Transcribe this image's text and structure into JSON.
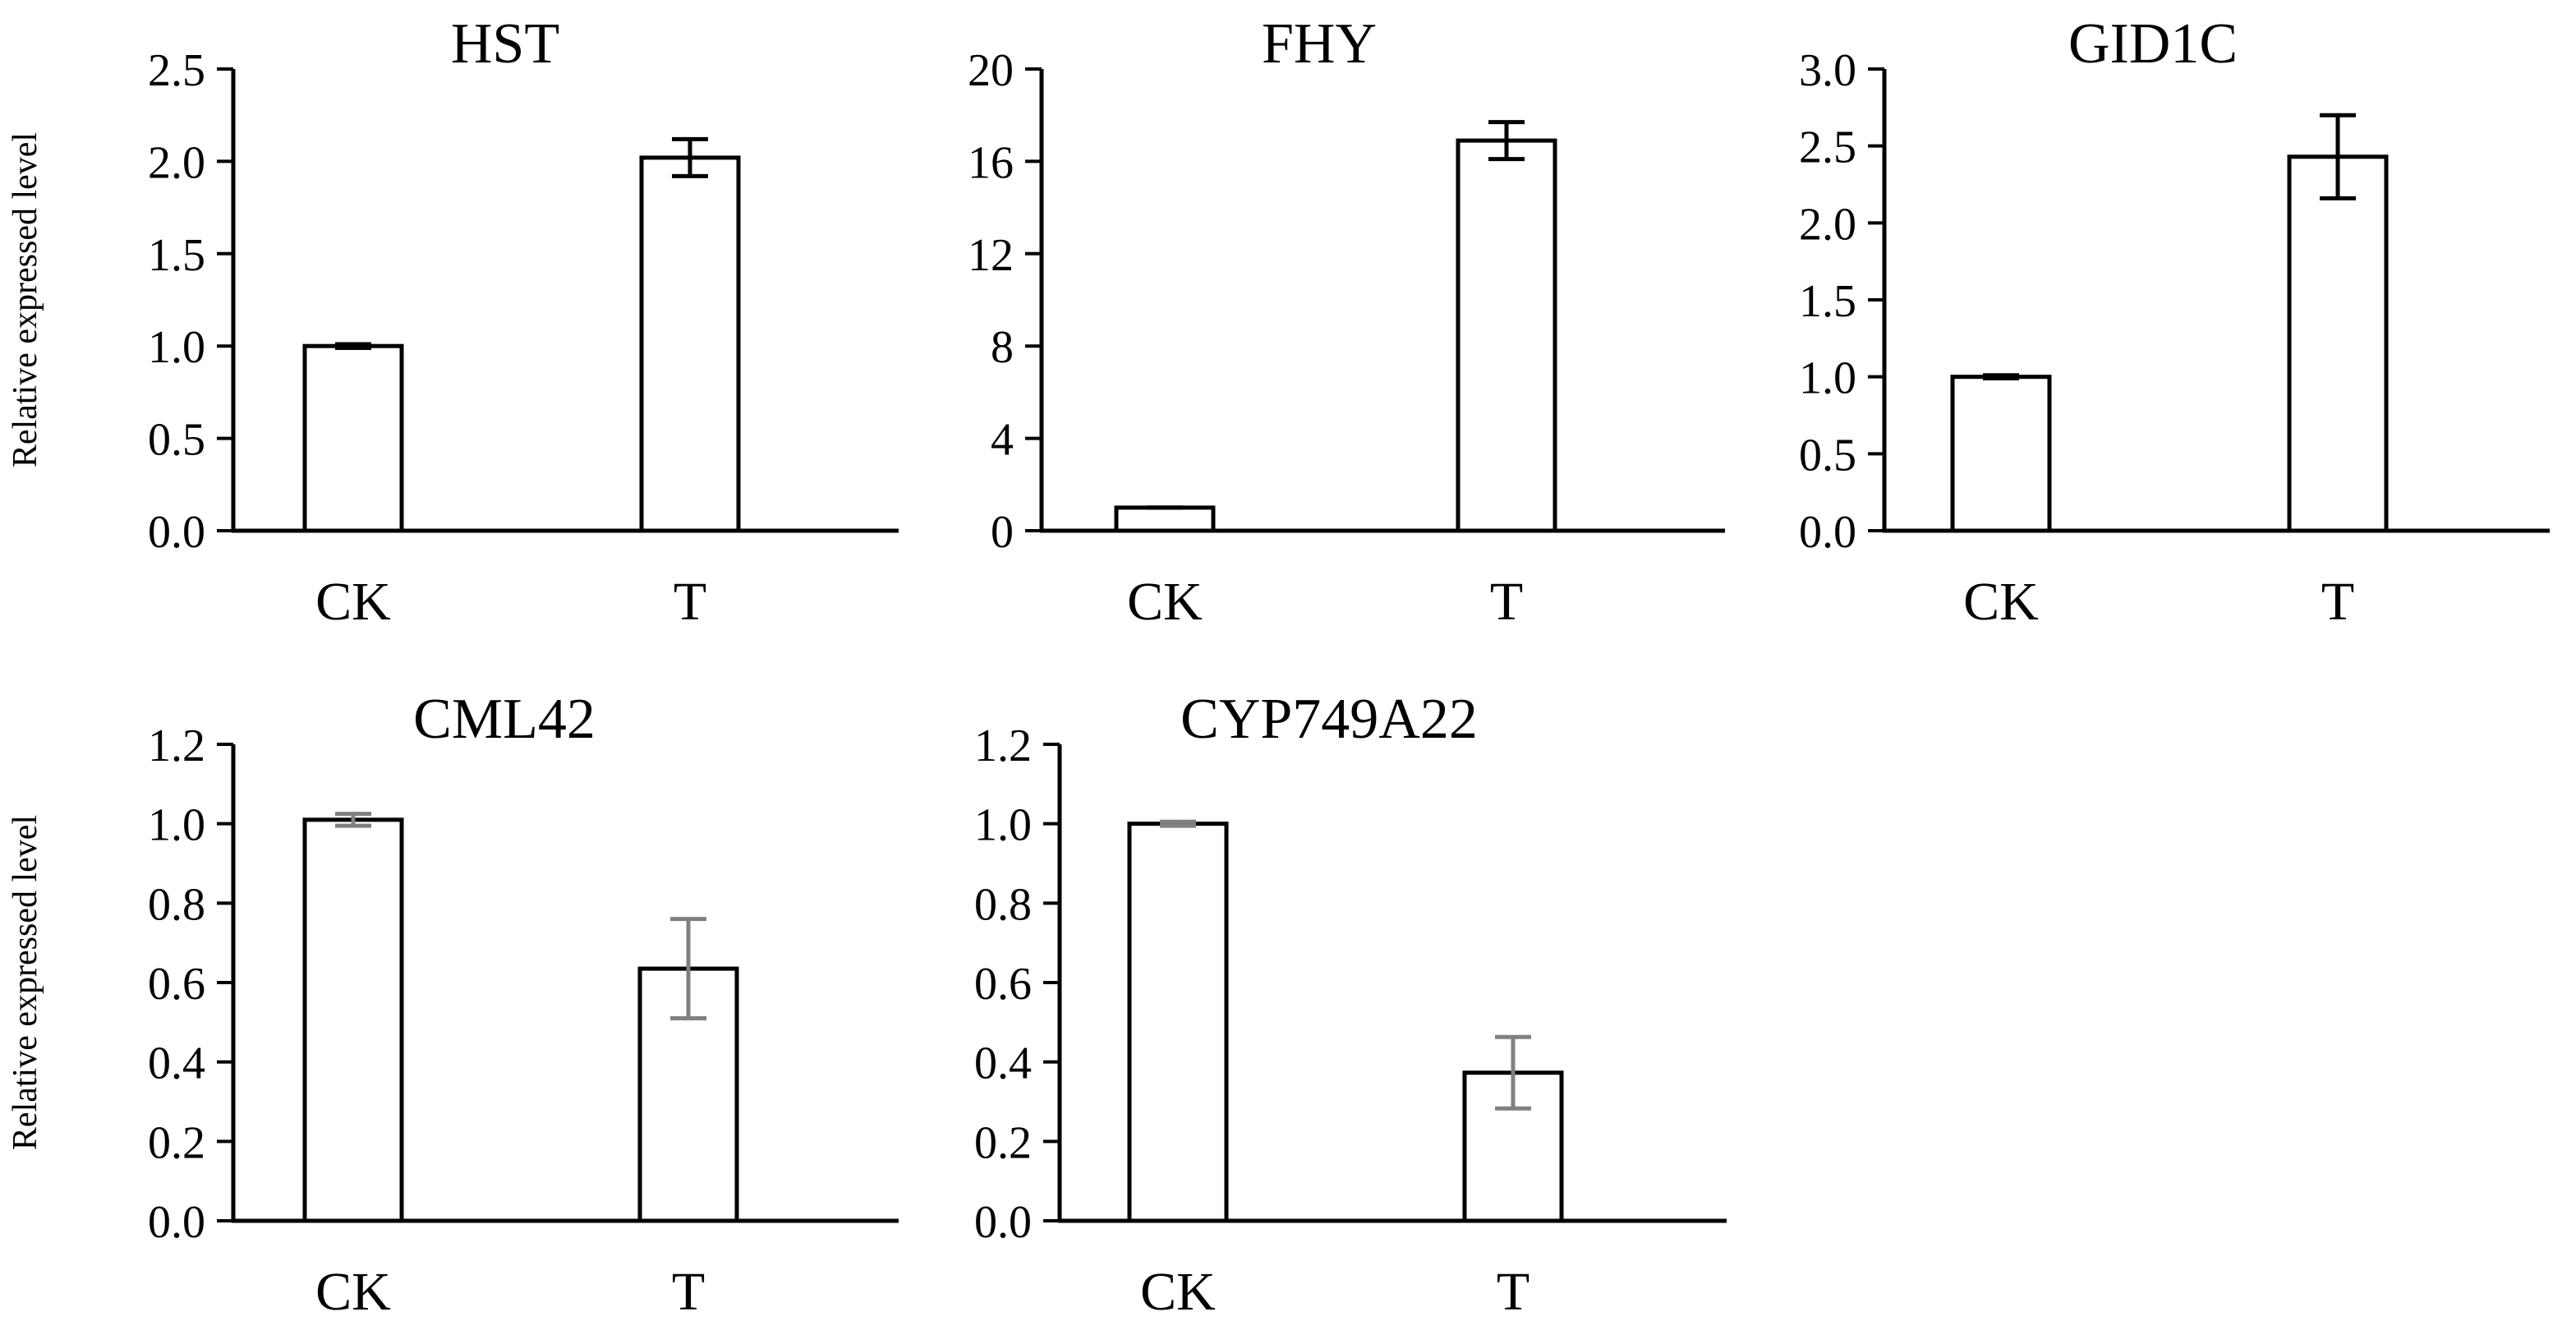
{
  "figure": {
    "ylabel": "Relative expressed level"
  },
  "colors": {
    "bar_fill": "#ffffff",
    "bar_stroke": "#000000",
    "axis": "#000000",
    "errorbar_black": "#000000",
    "errorbar_gray": "#808080"
  },
  "chart_data": [
    {
      "type": "bar",
      "title": "HST",
      "categories": [
        "CK",
        "T"
      ],
      "values": [
        1.0,
        2.02
      ],
      "errors": [
        0.01,
        0.1
      ],
      "error_color": "#000000",
      "ylabel": "Relative expressed level",
      "ylim": [
        0,
        2.5
      ],
      "yticks": [
        0.0,
        0.5,
        1.0,
        1.5,
        2.0,
        2.5
      ],
      "ytick_labels": [
        "0.0",
        "0.5",
        "1.0",
        "1.5",
        "2.0",
        "2.5"
      ],
      "grid": false
    },
    {
      "type": "bar",
      "title": "FHY",
      "categories": [
        "CK",
        "T"
      ],
      "values": [
        1.0,
        16.9
      ],
      "errors": [
        0.0,
        0.8
      ],
      "error_color": "#000000",
      "ylabel": "",
      "ylim": [
        0,
        20
      ],
      "yticks": [
        0,
        4,
        8,
        12,
        16,
        20
      ],
      "ytick_labels": [
        "0",
        "4",
        "8",
        "12",
        "16",
        "20"
      ],
      "grid": false
    },
    {
      "type": "bar",
      "title": "GID1C",
      "categories": [
        "CK",
        "T"
      ],
      "values": [
        1.0,
        2.43
      ],
      "errors": [
        0.01,
        0.27
      ],
      "error_color": "#000000",
      "ylabel": "",
      "ylim": [
        0,
        3.0
      ],
      "yticks": [
        0.0,
        0.5,
        1.0,
        1.5,
        2.0,
        2.5,
        3.0
      ],
      "ytick_labels": [
        "0.0",
        "0.5",
        "1.0",
        "1.5",
        "2.0",
        "2.5",
        "3.0"
      ],
      "grid": false
    },
    {
      "type": "bar",
      "title": "CML42",
      "categories": [
        "CK",
        "T"
      ],
      "values": [
        1.01,
        0.635
      ],
      "errors": [
        0.015,
        0.125
      ],
      "error_color": "#808080",
      "ylabel": "Relative expressed level",
      "ylim": [
        0,
        1.2
      ],
      "yticks": [
        0.0,
        0.2,
        0.4,
        0.6,
        0.8,
        1.0,
        1.2
      ],
      "ytick_labels": [
        "0.0",
        "0.2",
        "0.4",
        "0.6",
        "0.8",
        "1.0",
        "1.2"
      ],
      "grid": false
    },
    {
      "type": "bar",
      "title": "CYP749A22",
      "categories": [
        "CK",
        "T"
      ],
      "values": [
        1.0,
        0.373
      ],
      "errors": [
        0.005,
        0.09
      ],
      "error_color": "#808080",
      "ylabel": "",
      "ylim": [
        0,
        1.2
      ],
      "yticks": [
        0.0,
        0.2,
        0.4,
        0.6,
        0.8,
        1.0,
        1.2
      ],
      "ytick_labels": [
        "0.0",
        "0.2",
        "0.4",
        "0.6",
        "0.8",
        "1.0",
        "1.2"
      ],
      "grid": false
    }
  ]
}
